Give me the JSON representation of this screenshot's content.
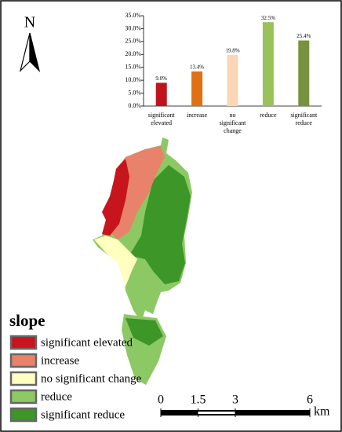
{
  "chart_data": {
    "type": "bar",
    "categories": [
      "significant elevated",
      "increase",
      "no significant change",
      "reduce",
      "significant reduce"
    ],
    "values": [
      9.0,
      13.4,
      19.8,
      32.5,
      25.4
    ],
    "value_labels": [
      "9.0%",
      "13.4%",
      "19.8%",
      "32.5%",
      "25.4%"
    ],
    "colors": [
      "#c0141c",
      "#e07014",
      "#fcd5b4",
      "#9bc15a",
      "#76923c"
    ],
    "ylim": [
      0,
      35
    ],
    "yticks": [
      {
        "value": 0,
        "label": "0.0%"
      },
      {
        "value": 5,
        "label": "5.0%"
      },
      {
        "value": 10,
        "label": "10.0%"
      },
      {
        "value": 15,
        "label": "15.0%"
      },
      {
        "value": 20,
        "label": "20.0%"
      },
      {
        "value": 25,
        "label": "25.0%"
      },
      {
        "value": 30,
        "label": "30.0%"
      },
      {
        "value": 35,
        "label": "35.0%"
      }
    ]
  },
  "north": "N",
  "legend": {
    "title": "slope",
    "items": [
      {
        "label": "significant elevated",
        "color": "#c8141c"
      },
      {
        "label": "increase",
        "color": "#e8826a"
      },
      {
        "label": "no significant change",
        "color": "#ffffc0"
      },
      {
        "label": "reduce",
        "color": "#8cc864"
      },
      {
        "label": "significant reduce",
        "color": "#3c9628"
      }
    ]
  },
  "scale": {
    "ticks": [
      0,
      1.5,
      3,
      6
    ],
    "unit": "km"
  }
}
